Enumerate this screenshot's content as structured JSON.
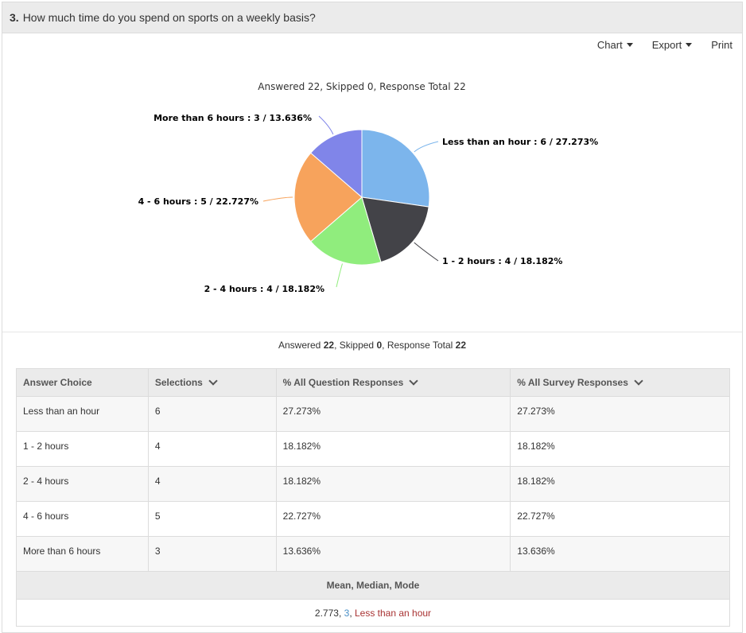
{
  "question": {
    "number": "3.",
    "text": "How much time do you spend on sports on a weekly basis?"
  },
  "toolbar": {
    "chart_label": "Chart",
    "export_label": "Export",
    "print_label": "Print"
  },
  "chart_data": {
    "type": "pie",
    "title": "Answered 22, Skipped 0, Response Total 22",
    "categories": [
      "Less than an hour",
      "1 - 2 hours",
      "2 - 4 hours",
      "4 - 6 hours",
      "More than 6 hours"
    ],
    "values": [
      6,
      4,
      4,
      5,
      3
    ],
    "percents": [
      "27.273%",
      "18.182%",
      "18.182%",
      "22.727%",
      "13.636%"
    ],
    "labels": [
      "Less than an hour : 6 / 27.273%",
      "1 - 2 hours : 4 / 18.182%",
      "2 - 4 hours : 4 / 18.182%",
      "4 - 6 hours : 5 / 22.727%",
      "More than 6 hours : 3 / 13.636%"
    ],
    "colors": [
      "#7cb5ec",
      "#434348",
      "#90ed7d",
      "#f7a35c",
      "#8085e9"
    ]
  },
  "summary": {
    "answered_label": "Answered",
    "answered": "22",
    "skipped_label": "Skipped",
    "skipped": "0",
    "total_label": "Response Total",
    "total": "22"
  },
  "table": {
    "headers": [
      "Answer Choice",
      "Selections",
      "% All Question Responses",
      "% All Survey Responses"
    ],
    "rows": [
      [
        "Less than an hour",
        "6",
        "27.273%",
        "27.273%"
      ],
      [
        "1 - 2 hours",
        "4",
        "18.182%",
        "18.182%"
      ],
      [
        "2 - 4 hours",
        "4",
        "18.182%",
        "18.182%"
      ],
      [
        "4 - 6 hours",
        "5",
        "22.727%",
        "22.727%"
      ],
      [
        "More than 6 hours",
        "3",
        "13.636%",
        "13.636%"
      ]
    ],
    "stats_header": "Mean, Median, Mode",
    "mean": "2.773",
    "median": "3",
    "mode": "Less than an hour"
  }
}
